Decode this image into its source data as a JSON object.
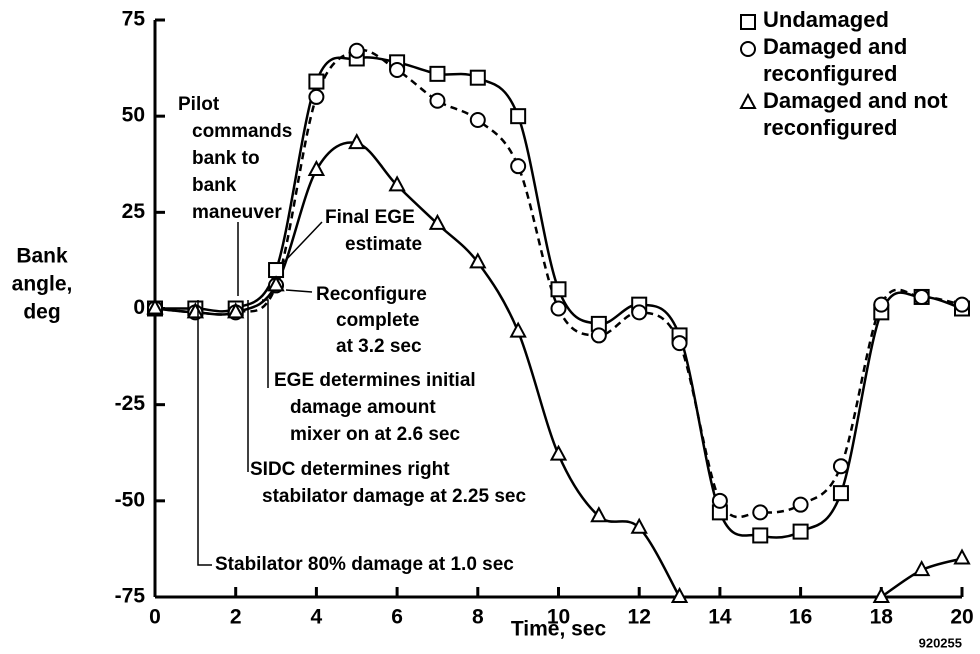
{
  "chart_data": {
    "type": "line",
    "x_label": "Time, sec",
    "y_label": [
      "Bank",
      "angle,",
      "deg"
    ],
    "figure_number": "920255",
    "x": [
      0,
      1,
      2,
      3,
      4,
      5,
      6,
      7,
      8,
      9,
      10,
      11,
      12,
      13,
      14,
      15,
      16,
      17,
      18,
      19,
      20
    ],
    "xlim": [
      0,
      20
    ],
    "xticks": [
      0,
      2,
      4,
      6,
      8,
      10,
      12,
      14,
      16,
      18,
      20
    ],
    "ylim": [
      -75,
      75
    ],
    "yticks": [
      -75,
      -50,
      -25,
      0,
      25,
      50,
      75
    ],
    "series": [
      {
        "name": "Undamaged",
        "color": "#000",
        "marker": "square",
        "dash": false,
        "values": [
          0,
          0,
          0,
          10,
          59,
          65,
          64,
          61,
          60,
          50,
          5,
          -4,
          1,
          -7,
          -53,
          -59,
          -58,
          -48,
          -1,
          3,
          0
        ]
      },
      {
        "name": "Damaged and reconfigured",
        "color": "#000",
        "marker": "circle",
        "dash": true,
        "values": [
          0,
          -1,
          -1,
          6,
          55,
          67,
          62,
          54,
          49,
          37,
          0,
          -7,
          -1,
          -9,
          -50,
          -53,
          -51,
          -41,
          1,
          3,
          1
        ]
      },
      {
        "name": "Damaged and not reconfigured",
        "color": "#000",
        "marker": "triangle",
        "dash": false,
        "values": [
          0,
          -1,
          -1,
          6,
          36,
          43,
          32,
          22,
          12,
          -6,
          -38,
          -54,
          -57,
          -75,
          null,
          null,
          null,
          null,
          -75,
          -68,
          -65
        ]
      }
    ],
    "annotations": [
      {
        "lines": [
          "Pilot",
          "commands",
          "bank to",
          "bank",
          "maneuver"
        ]
      },
      {
        "lines": [
          "Final EGE",
          "estimate"
        ]
      },
      {
        "lines": [
          "Reconfigure",
          "complete",
          "at 3.2 sec"
        ]
      },
      {
        "lines": [
          "EGE determines initial",
          "damage amount",
          "mixer on at 2.6 sec"
        ]
      },
      {
        "lines": [
          "SIDC determines right",
          "stabilator damage at 2.25 sec"
        ]
      },
      {
        "lines": [
          "Stabilator 80% damage at 1.0 sec"
        ]
      }
    ]
  }
}
